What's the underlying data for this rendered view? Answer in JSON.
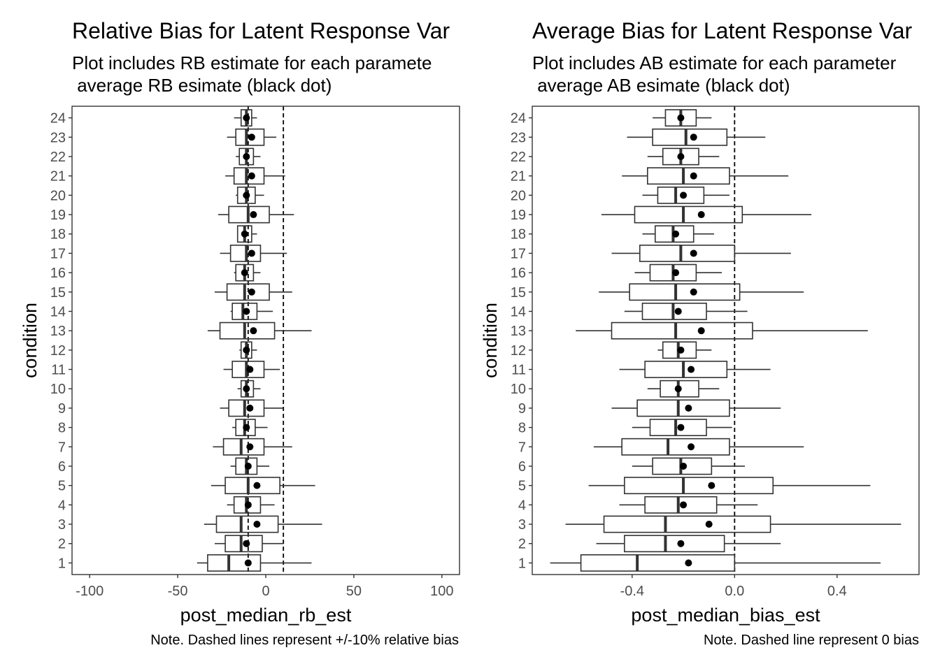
{
  "chart_data": [
    {
      "type": "boxplot",
      "title": "Relative Bias for Latent Response Var",
      "subtitle_line1": "Plot includes RB estimate for each paramete",
      "subtitle_line2": " average RB esimate (black dot)",
      "xlabel": "post_median_rb_est",
      "ylabel": "condition",
      "note": "Note. Dashed lines represent +/-10% relative bias",
      "xlim": [
        -110,
        110
      ],
      "xticks": [
        -100,
        -50,
        0,
        50,
        100
      ],
      "xtick_labels": [
        "-100",
        "-50",
        "0",
        "50",
        "100"
      ],
      "reference_lines": [
        -10,
        10
      ],
      "grid": false,
      "categories": [
        "1",
        "2",
        "3",
        "4",
        "5",
        "6",
        "7",
        "8",
        "9",
        "10",
        "11",
        "12",
        "13",
        "14",
        "15",
        "16",
        "17",
        "18",
        "19",
        "20",
        "21",
        "22",
        "23",
        "24"
      ],
      "boxes": [
        {
          "whisker_low": -39,
          "q1": -33,
          "median": -21,
          "q3": -3,
          "whisker_high": 26,
          "mean": -10
        },
        {
          "whisker_low": -29,
          "q1": -23,
          "median": -14,
          "q3": -2,
          "whisker_high": 10,
          "mean": -11
        },
        {
          "whisker_low": -35,
          "q1": -28,
          "median": -14,
          "q3": 7,
          "whisker_high": 32,
          "mean": -5
        },
        {
          "whisker_low": -22,
          "q1": -18,
          "median": -11,
          "q3": -3,
          "whisker_high": 5,
          "mean": -10
        },
        {
          "whisker_low": -31,
          "q1": -23,
          "median": -10,
          "q3": 8,
          "whisker_high": 28,
          "mean": -5
        },
        {
          "whisker_low": -20,
          "q1": -17,
          "median": -11,
          "q3": -5,
          "whisker_high": 2,
          "mean": -10
        },
        {
          "whisker_low": -30,
          "q1": -24,
          "median": -14,
          "q3": -1,
          "whisker_high": 15,
          "mean": -9
        },
        {
          "whisker_low": -19,
          "q1": -17,
          "median": -12,
          "q3": -6,
          "whisker_high": 1,
          "mean": -11
        },
        {
          "whisker_low": -26,
          "q1": -21,
          "median": -12,
          "q3": -1,
          "whisker_high": 10,
          "mean": -9
        },
        {
          "whisker_low": -16,
          "q1": -14,
          "median": -11,
          "q3": -7,
          "whisker_high": -3,
          "mean": -11
        },
        {
          "whisker_low": -24,
          "q1": -19,
          "median": -11,
          "q3": -1,
          "whisker_high": 8,
          "mean": -9
        },
        {
          "whisker_low": -15,
          "q1": -14,
          "median": -11,
          "q3": -8,
          "whisker_high": -5,
          "mean": -11
        },
        {
          "whisker_low": -33,
          "q1": -26,
          "median": -12,
          "q3": 5,
          "whisker_high": 26,
          "mean": -7
        },
        {
          "whisker_low": -20,
          "q1": -19,
          "median": -13,
          "q3": -5,
          "whisker_high": 4,
          "mean": -11
        },
        {
          "whisker_low": -29,
          "q1": -22,
          "median": -12,
          "q3": 2,
          "whisker_high": 15,
          "mean": -8
        },
        {
          "whisker_low": -18,
          "q1": -17,
          "median": -12,
          "q3": -7,
          "whisker_high": -3,
          "mean": -12
        },
        {
          "whisker_low": -26,
          "q1": -20,
          "median": -11,
          "q3": -3,
          "whisker_high": 12,
          "mean": -8
        },
        {
          "whisker_low": -16,
          "q1": -16,
          "median": -12,
          "q3": -8,
          "whisker_high": -5,
          "mean": -12
        },
        {
          "whisker_low": -27,
          "q1": -21,
          "median": -10,
          "q3": 2,
          "whisker_high": 16,
          "mean": -7
        },
        {
          "whisker_low": -17,
          "q1": -16,
          "median": -11,
          "q3": -6,
          "whisker_high": -1,
          "mean": -11
        },
        {
          "whisker_low": -23,
          "q1": -18,
          "median": -11,
          "q3": -1,
          "whisker_high": 11,
          "mean": -8
        },
        {
          "whisker_low": -17,
          "q1": -15,
          "median": -11,
          "q3": -7,
          "whisker_high": -3,
          "mean": -11
        },
        {
          "whisker_low": -22,
          "q1": -17,
          "median": -11,
          "q3": -1,
          "whisker_high": 6,
          "mean": -8
        },
        {
          "whisker_low": -18,
          "q1": -14,
          "median": -11,
          "q3": -8,
          "whisker_high": -5,
          "mean": -11
        }
      ]
    },
    {
      "type": "boxplot",
      "title": "Average Bias for Latent Response Var",
      "subtitle_line1": "Plot includes AB estimate for each parameter",
      "subtitle_line2": " average AB esimate (black dot)",
      "xlabel": "post_median_bias_est",
      "ylabel": "condition",
      "note": "Note. Dashed line represent 0 bias",
      "xlim": [
        -0.79,
        0.72
      ],
      "xticks": [
        -0.4,
        0.0,
        0.4
      ],
      "xtick_labels": [
        "-0.4",
        "0.0",
        "0.4"
      ],
      "reference_lines": [
        0
      ],
      "grid": false,
      "categories": [
        "1",
        "2",
        "3",
        "4",
        "5",
        "6",
        "7",
        "8",
        "9",
        "10",
        "11",
        "12",
        "13",
        "14",
        "15",
        "16",
        "17",
        "18",
        "19",
        "20",
        "21",
        "22",
        "23",
        "24"
      ],
      "boxes": [
        {
          "whisker_low": -0.72,
          "q1": -0.6,
          "median": -0.38,
          "q3": 0.0,
          "whisker_high": 0.57,
          "mean": -0.18
        },
        {
          "whisker_low": -0.54,
          "q1": -0.43,
          "median": -0.27,
          "q3": -0.04,
          "whisker_high": 0.18,
          "mean": -0.21
        },
        {
          "whisker_low": -0.66,
          "q1": -0.51,
          "median": -0.27,
          "q3": 0.14,
          "whisker_high": 0.65,
          "mean": -0.1
        },
        {
          "whisker_low": -0.45,
          "q1": -0.35,
          "median": -0.22,
          "q3": -0.07,
          "whisker_high": 0.09,
          "mean": -0.2
        },
        {
          "whisker_low": -0.57,
          "q1": -0.43,
          "median": -0.2,
          "q3": 0.15,
          "whisker_high": 0.53,
          "mean": -0.09
        },
        {
          "whisker_low": -0.4,
          "q1": -0.32,
          "median": -0.21,
          "q3": -0.09,
          "whisker_high": 0.04,
          "mean": -0.2
        },
        {
          "whisker_low": -0.55,
          "q1": -0.44,
          "median": -0.26,
          "q3": -0.02,
          "whisker_high": 0.27,
          "mean": -0.17
        },
        {
          "whisker_low": -0.4,
          "q1": -0.33,
          "median": -0.23,
          "q3": -0.11,
          "whisker_high": -0.01,
          "mean": -0.21
        },
        {
          "whisker_low": -0.48,
          "q1": -0.38,
          "median": -0.22,
          "q3": -0.02,
          "whisker_high": 0.18,
          "mean": -0.18
        },
        {
          "whisker_low": -0.34,
          "q1": -0.29,
          "median": -0.22,
          "q3": -0.14,
          "whisker_high": -0.06,
          "mean": -0.22
        },
        {
          "whisker_low": -0.45,
          "q1": -0.35,
          "median": -0.2,
          "q3": -0.03,
          "whisker_high": 0.14,
          "mean": -0.17
        },
        {
          "whisker_low": -0.3,
          "q1": -0.28,
          "median": -0.22,
          "q3": -0.15,
          "whisker_high": -0.09,
          "mean": -0.21
        },
        {
          "whisker_low": -0.62,
          "q1": -0.48,
          "median": -0.23,
          "q3": 0.07,
          "whisker_high": 0.52,
          "mean": -0.13
        },
        {
          "whisker_low": -0.43,
          "q1": -0.36,
          "median": -0.24,
          "q3": -0.11,
          "whisker_high": 0.05,
          "mean": -0.22
        },
        {
          "whisker_low": -0.53,
          "q1": -0.41,
          "median": -0.23,
          "q3": 0.02,
          "whisker_high": 0.27,
          "mean": -0.16
        },
        {
          "whisker_low": -0.39,
          "q1": -0.33,
          "median": -0.24,
          "q3": -0.15,
          "whisker_high": -0.05,
          "mean": -0.23
        },
        {
          "whisker_low": -0.48,
          "q1": -0.37,
          "median": -0.21,
          "q3": 0.0,
          "whisker_high": 0.22,
          "mean": -0.16
        },
        {
          "whisker_low": -0.36,
          "q1": -0.31,
          "median": -0.24,
          "q3": -0.16,
          "whisker_high": -0.08,
          "mean": -0.23
        },
        {
          "whisker_low": -0.52,
          "q1": -0.39,
          "median": -0.2,
          "q3": 0.03,
          "whisker_high": 0.3,
          "mean": -0.13
        },
        {
          "whisker_low": -0.36,
          "q1": -0.3,
          "median": -0.23,
          "q3": -0.12,
          "whisker_high": -0.02,
          "mean": -0.2
        },
        {
          "whisker_low": -0.44,
          "q1": -0.34,
          "median": -0.2,
          "q3": -0.02,
          "whisker_high": 0.21,
          "mean": -0.16
        },
        {
          "whisker_low": -0.34,
          "q1": -0.28,
          "median": -0.21,
          "q3": -0.14,
          "whisker_high": -0.06,
          "mean": -0.21
        },
        {
          "whisker_low": -0.42,
          "q1": -0.32,
          "median": -0.19,
          "q3": -0.03,
          "whisker_high": 0.12,
          "mean": -0.16
        },
        {
          "whisker_low": -0.32,
          "q1": -0.27,
          "median": -0.21,
          "q3": -0.15,
          "whisker_high": -0.09,
          "mean": -0.21
        }
      ]
    }
  ]
}
